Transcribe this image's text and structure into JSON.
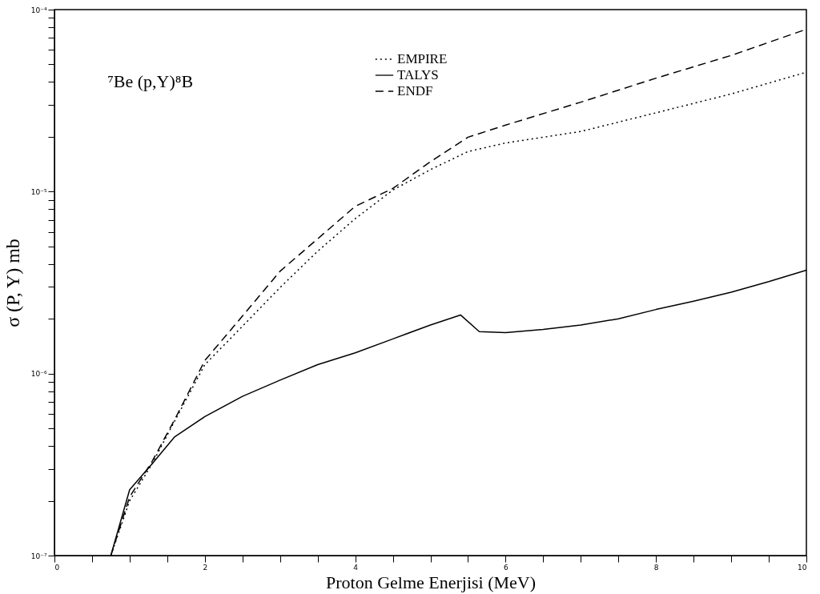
{
  "chart_data": {
    "type": "line",
    "title": "⁷Be (p,Y)⁸B",
    "xlabel": "Proton Gelme Enerjisi (MeV)",
    "ylabel": "σ (P, Y) mb",
    "log": "y",
    "legend": "top",
    "grid": false,
    "xlim": [
      0,
      10
    ],
    "xticks": [
      0,
      {
        "value": 0.5,
        "label": null
      },
      {
        "value": 1,
        "label": null
      },
      {
        "value": 1.5,
        "label": null
      },
      2,
      {
        "value": 2.5,
        "label": null
      },
      {
        "value": 3,
        "label": null
      },
      {
        "value": 3.5,
        "label": null
      },
      4,
      {
        "value": 4.5,
        "label": null
      },
      {
        "value": 5,
        "label": null
      },
      {
        "value": 5.5,
        "label": null
      },
      6,
      {
        "value": 6.5,
        "label": null
      },
      {
        "value": 7,
        "label": null
      },
      {
        "value": 7.5,
        "label": null
      },
      8,
      {
        "value": 8.5,
        "label": null
      },
      {
        "value": 9,
        "label": null
      },
      {
        "value": 9.5,
        "label": null
      },
      10
    ],
    "ylim": [
      1e-07,
      0.0001
    ],
    "yticks": [
      {
        "value": 1e-07,
        "label": "10⁻⁷"
      },
      {
        "value": 2e-07,
        "label": null
      },
      {
        "value": 3e-07,
        "label": null
      },
      {
        "value": 4e-07,
        "label": null
      },
      {
        "value": 5e-07,
        "label": null
      },
      {
        "value": 6e-07,
        "label": null
      },
      {
        "value": 7e-07,
        "label": null
      },
      {
        "value": 8e-07,
        "label": null
      },
      {
        "value": 9e-07,
        "label": null
      },
      {
        "value": 1e-06,
        "label": "10⁻⁶"
      },
      {
        "value": 2e-06,
        "label": null
      },
      {
        "value": 3e-06,
        "label": null
      },
      {
        "value": 4e-06,
        "label": null
      },
      {
        "value": 5e-06,
        "label": null
      },
      {
        "value": 6e-06,
        "label": null
      },
      {
        "value": 7e-06,
        "label": null
      },
      {
        "value": 8e-06,
        "label": null
      },
      {
        "value": 9e-06,
        "label": null
      },
      {
        "value": 1e-05,
        "label": "10⁻⁵"
      },
      {
        "value": 2e-05,
        "label": null
      },
      {
        "value": 3e-05,
        "label": null
      },
      {
        "value": 4e-05,
        "label": null
      },
      {
        "value": 5e-05,
        "label": null
      },
      {
        "value": 6e-05,
        "label": null
      },
      {
        "value": 7e-05,
        "label": null
      },
      {
        "value": 8e-05,
        "label": null
      },
      {
        "value": 9e-05,
        "label": null
      },
      {
        "value": 0.0001,
        "label": "10⁻⁴"
      }
    ],
    "series": [
      {
        "name": "EMPIRE",
        "color": "#000000",
        "line_style": "dotted",
        "x": [
          0.75,
          1.0,
          1.3,
          1.6,
          2.0,
          2.5,
          3.0,
          3.5,
          4.0,
          4.5,
          5.0,
          5.5,
          6.0,
          7.0,
          8.0,
          9.0,
          10.0
        ],
        "values": [
          1e-07,
          2e-07,
          3.2e-07,
          5.5e-07,
          1.12e-06,
          1.82e-06,
          2.97e-06,
          4.7e-06,
          7.1e-06,
          1.02e-05,
          1.32e-05,
          1.66e-05,
          1.85e-05,
          2.14e-05,
          2.71e-05,
          3.44e-05,
          4.53e-05
        ]
      },
      {
        "name": "TALYS",
        "color": "#000000",
        "line_style": "solid",
        "x": [
          0.75,
          1.0,
          1.3,
          1.6,
          2.0,
          2.5,
          3.0,
          3.5,
          4.0,
          4.5,
          5.0,
          5.4,
          5.65,
          6.0,
          6.5,
          7.0,
          7.5,
          8.0,
          8.5,
          9.0,
          9.5,
          10.0
        ],
        "values": [
          1e-07,
          2.3e-07,
          3.2e-07,
          4.5e-07,
          5.8e-07,
          7.5e-07,
          9.2e-07,
          1.12e-06,
          1.3e-06,
          1.55e-06,
          1.85e-06,
          2.1e-06,
          1.7e-06,
          1.68e-06,
          1.75e-06,
          1.85e-06,
          2e-06,
          2.25e-06,
          2.5e-06,
          2.8e-06,
          3.2e-06,
          3.7e-06
        ]
      },
      {
        "name": "ENDF",
        "color": "#000000",
        "line_style": "dashed",
        "x": [
          0.75,
          1.0,
          1.3,
          1.6,
          2.0,
          2.5,
          3.0,
          3.5,
          4.0,
          4.5,
          5.0,
          5.5,
          6.0,
          7.0,
          8.0,
          9.0,
          10.0
        ],
        "values": [
          1e-07,
          2.1e-07,
          3.3e-07,
          5.6e-07,
          1.18e-06,
          2.07e-06,
          3.65e-06,
          5.5e-06,
          8.3e-06,
          1.04e-05,
          1.46e-05,
          1.99e-05,
          2.32e-05,
          3.1e-05,
          4.2e-05,
          5.6e-05,
          7.8e-05
        ]
      }
    ]
  }
}
